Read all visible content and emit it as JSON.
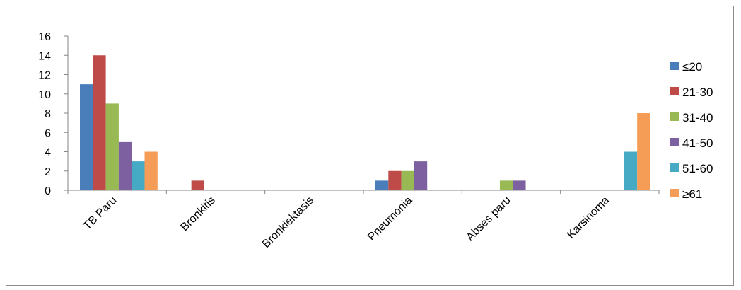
{
  "chart_data": {
    "type": "bar",
    "title": "",
    "xlabel": "",
    "ylabel": "",
    "categories": [
      "TB Paru",
      "Bronkitis",
      "Bronkiektasis",
      "Pneumonia",
      "Abses paru",
      "Karsinoma"
    ],
    "ylim": [
      0,
      16
    ],
    "yticks": [
      0,
      2,
      4,
      6,
      8,
      10,
      12,
      14,
      16
    ],
    "grid": false,
    "legend_position": "right",
    "series": [
      {
        "name": "≤20",
        "color": "#4a7ebb",
        "values": [
          11,
          0,
          0,
          1,
          0,
          0
        ]
      },
      {
        "name": "21-30",
        "color": "#be4b48",
        "values": [
          14,
          1,
          0,
          2,
          0,
          0
        ]
      },
      {
        "name": "31-40",
        "color": "#98b954",
        "values": [
          9,
          0,
          0,
          2,
          1,
          0
        ]
      },
      {
        "name": "41-50",
        "color": "#7d60a0",
        "values": [
          5,
          0,
          0,
          3,
          1,
          0
        ]
      },
      {
        "name": "51-60",
        "color": "#46aac5",
        "values": [
          3,
          0,
          0,
          0,
          0,
          4
        ]
      },
      {
        "name": "≥61",
        "color": "#f59d56",
        "values": [
          4,
          0,
          0,
          0,
          0,
          8
        ]
      }
    ]
  }
}
